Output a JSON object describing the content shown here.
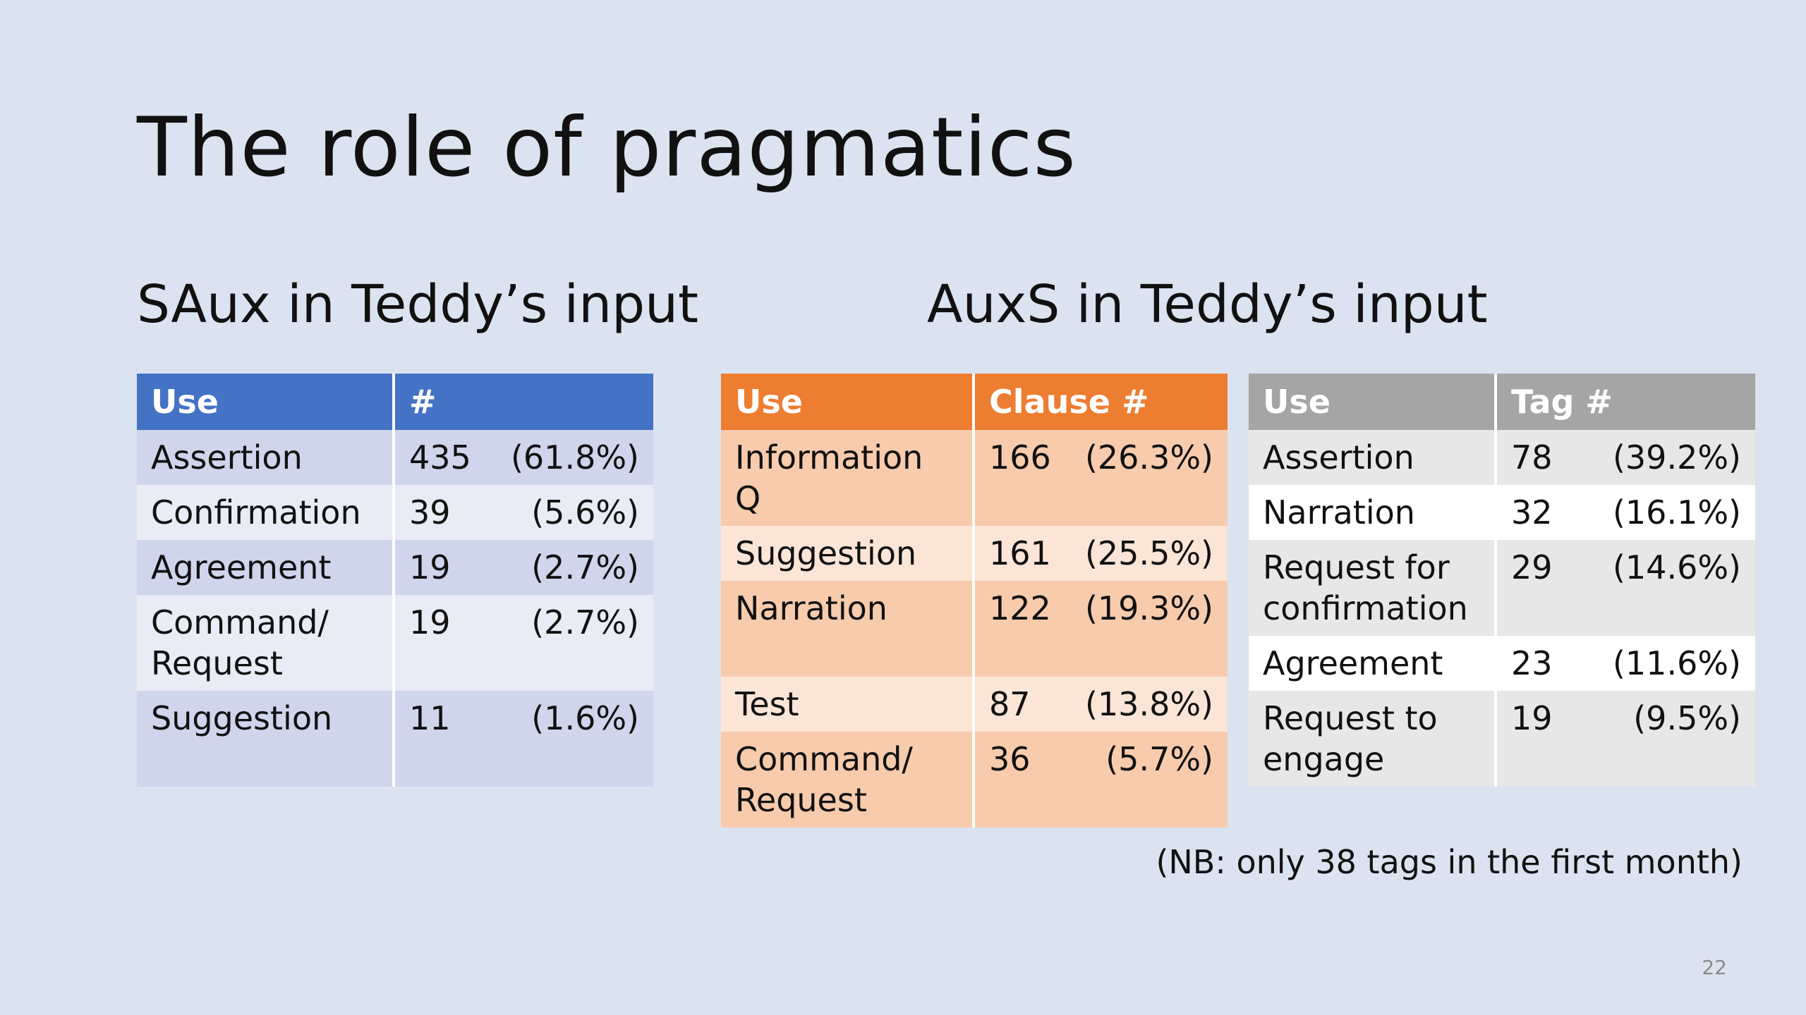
{
  "slide": {
    "title": "The role of pragmatics",
    "page_number": "22",
    "footnote": "(NB: only 38 tags in the first month)"
  },
  "colors": {
    "background": "#dbe3f1",
    "blue_header": "#4472c4",
    "orange_header": "#ed7d31",
    "gray_header": "#a5a5a5"
  },
  "saux": {
    "title": "SAux in Teddy’s input",
    "headers": {
      "use": "Use",
      "count": "#"
    },
    "rows": [
      {
        "use": "Assertion",
        "count": "435",
        "pct": "(61.8%)"
      },
      {
        "use": "Confirmation",
        "count": "39",
        "pct": "(5.6%)"
      },
      {
        "use": "Agreement",
        "count": "19",
        "pct": "(2.7%)"
      },
      {
        "use": "Command/ Request",
        "count": "19",
        "pct": "(2.7%)"
      },
      {
        "use": "Suggestion",
        "count": "11",
        "pct": "(1.6%)"
      }
    ]
  },
  "auxs": {
    "title": "AuxS in Teddy’s input",
    "clause_table": {
      "headers": {
        "use": "Use",
        "count": "Clause #"
      },
      "rows": [
        {
          "use": "Information Q",
          "count": "166",
          "pct": "(26.3%)"
        },
        {
          "use": "Suggestion",
          "count": "161",
          "pct": "(25.5%)"
        },
        {
          "use": "Narration",
          "count": "122",
          "pct": "(19.3%)"
        },
        {
          "use": "Test",
          "count": "87",
          "pct": "(13.8%)"
        },
        {
          "use": "Command/ Request",
          "count": "36",
          "pct": "(5.7%)"
        }
      ]
    },
    "tag_table": {
      "headers": {
        "use": "Use",
        "count": "Tag #"
      },
      "rows": [
        {
          "use": "Assertion",
          "count": "78",
          "pct": "(39.2%)"
        },
        {
          "use": "Narration",
          "count": "32",
          "pct": "(16.1%)"
        },
        {
          "use": "Request for confirmation",
          "count": "29",
          "pct": "(14.6%)"
        },
        {
          "use": "Agreement",
          "count": "23",
          "pct": "(11.6%)"
        },
        {
          "use": "Request to engage",
          "count": "19",
          "pct": "(9.5%)"
        }
      ]
    }
  }
}
